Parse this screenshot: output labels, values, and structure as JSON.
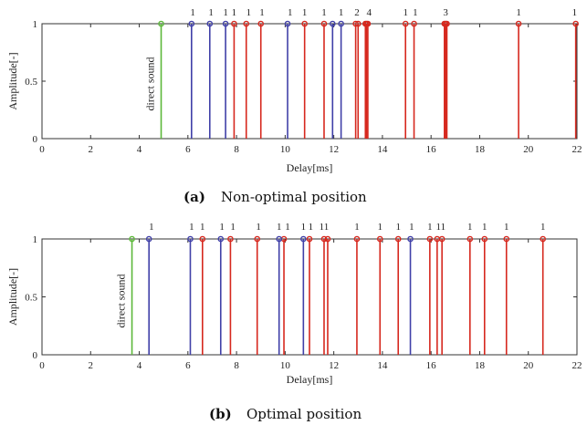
{
  "chart_data": [
    {
      "type": "stem",
      "caption_tag": "(a)",
      "caption": "Non-optimal position",
      "xlabel": "Delay[ms]",
      "ylabel": "Amplitude[-]",
      "xlim": [
        0,
        22
      ],
      "ylim": [
        0,
        1
      ],
      "xticks": [
        "0",
        "2",
        "4",
        "6",
        "8",
        "10",
        "12",
        "14",
        "16",
        "18",
        "20",
        "22"
      ],
      "yticks": [
        "0",
        "0.5",
        "1"
      ],
      "colors": {
        "direct": "#5cb83a",
        "blue": "#4040a8",
        "red": "#d6281e"
      },
      "direct": {
        "x": 4.9,
        "label": "direct sound"
      },
      "blue_x": [
        6.15,
        6.9,
        7.55,
        10.1,
        11.95,
        12.3
      ],
      "red_x": [
        7.9,
        8.4,
        9.0,
        10.8,
        11.6,
        12.9,
        13.0,
        13.3,
        13.35,
        13.4,
        14.95,
        15.3,
        16.55,
        16.6,
        16.65,
        19.6,
        21.95
      ],
      "top_labels": [
        {
          "x": 6.2,
          "text": "1"
        },
        {
          "x": 6.95,
          "text": "1"
        },
        {
          "x": 7.55,
          "text": "1"
        },
        {
          "x": 7.9,
          "text": "1"
        },
        {
          "x": 8.5,
          "text": "1"
        },
        {
          "x": 9.05,
          "text": "1"
        },
        {
          "x": 10.2,
          "text": "1"
        },
        {
          "x": 10.8,
          "text": "1"
        },
        {
          "x": 11.6,
          "text": "1"
        },
        {
          "x": 12.3,
          "text": "1"
        },
        {
          "x": 12.95,
          "text": "2"
        },
        {
          "x": 13.45,
          "text": "4"
        },
        {
          "x": 14.95,
          "text": "1"
        },
        {
          "x": 15.35,
          "text": "1"
        },
        {
          "x": 16.6,
          "text": "3"
        },
        {
          "x": 19.6,
          "text": "1"
        },
        {
          "x": 21.9,
          "text": "1"
        }
      ]
    },
    {
      "type": "stem",
      "caption_tag": "(b)",
      "caption": "Optimal position",
      "xlabel": "Delay[ms]",
      "ylabel": "Amplitude[-]",
      "xlim": [
        0,
        22
      ],
      "ylim": [
        0,
        1
      ],
      "xticks": [
        "0",
        "2",
        "4",
        "6",
        "8",
        "10",
        "12",
        "14",
        "16",
        "18",
        "20",
        "22"
      ],
      "yticks": [
        "0",
        "0.5",
        "1"
      ],
      "colors": {
        "direct": "#5cb83a",
        "blue": "#4040a8",
        "red": "#d6281e"
      },
      "direct": {
        "x": 3.7,
        "label": "direct sound"
      },
      "blue_x": [
        4.4,
        6.1,
        7.35,
        9.75,
        10.75,
        15.15
      ],
      "red_x": [
        6.6,
        7.75,
        8.85,
        9.95,
        11.0,
        11.6,
        11.75,
        12.95,
        13.9,
        14.65,
        15.95,
        16.25,
        16.45,
        17.6,
        18.2,
        19.1,
        20.6
      ],
      "top_labels": [
        {
          "x": 4.5,
          "text": "1"
        },
        {
          "x": 6.15,
          "text": "1"
        },
        {
          "x": 6.6,
          "text": "1"
        },
        {
          "x": 7.4,
          "text": "1"
        },
        {
          "x": 7.85,
          "text": "1"
        },
        {
          "x": 8.9,
          "text": "1"
        },
        {
          "x": 9.75,
          "text": "1"
        },
        {
          "x": 10.1,
          "text": "1"
        },
        {
          "x": 10.75,
          "text": "1"
        },
        {
          "x": 11.05,
          "text": "1"
        },
        {
          "x": 11.6,
          "text": "11"
        },
        {
          "x": 12.95,
          "text": "1"
        },
        {
          "x": 13.9,
          "text": "1"
        },
        {
          "x": 14.65,
          "text": "1"
        },
        {
          "x": 15.2,
          "text": "1"
        },
        {
          "x": 15.95,
          "text": "1"
        },
        {
          "x": 16.4,
          "text": "11"
        },
        {
          "x": 17.6,
          "text": "1"
        },
        {
          "x": 18.2,
          "text": "1"
        },
        {
          "x": 19.1,
          "text": "1"
        },
        {
          "x": 20.6,
          "text": "1"
        }
      ]
    }
  ]
}
